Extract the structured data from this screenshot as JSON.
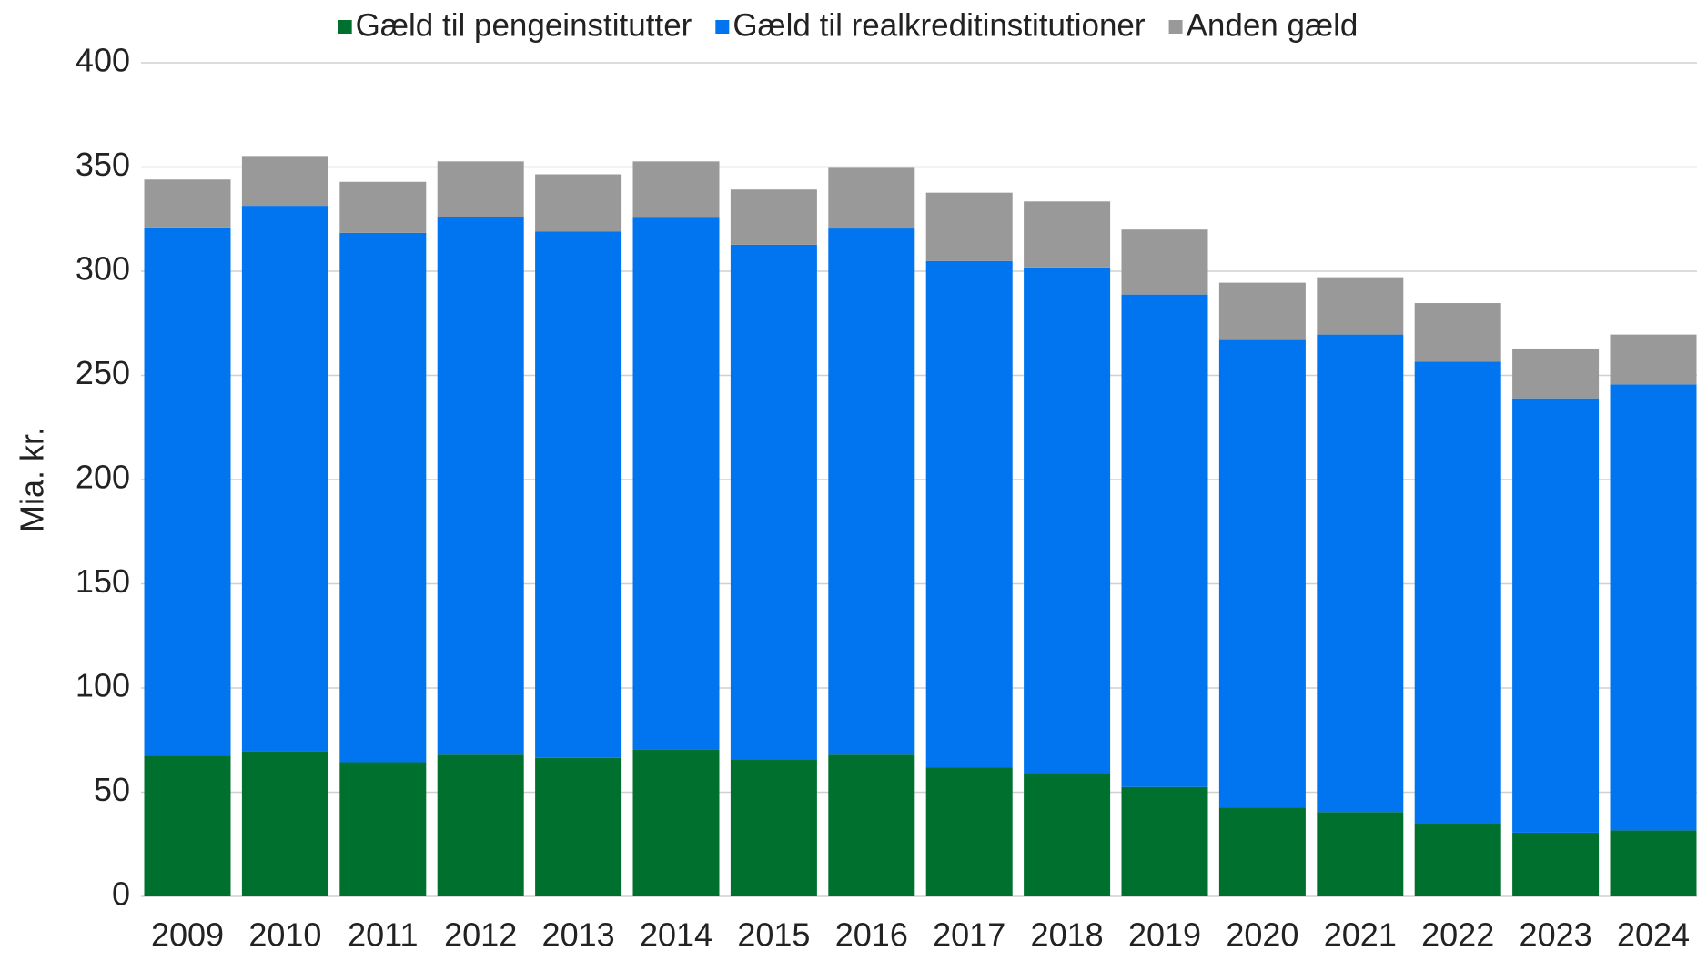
{
  "chart_data": {
    "type": "stacked_bar",
    "ylabel": "Mia. kr.",
    "categories": [
      "2009",
      "2010",
      "2011",
      "2012",
      "2013",
      "2014",
      "2015",
      "2016",
      "2017",
      "2018",
      "2019",
      "2020",
      "2021",
      "2022",
      "2023",
      "2024"
    ],
    "series": [
      {
        "name": "Gæld til pengeinstitutter",
        "color": "#00702e",
        "values": [
          67.5,
          69.6,
          64.4,
          68,
          66.5,
          70.6,
          65.5,
          68,
          61.8,
          59.2,
          52.5,
          42.6,
          40.5,
          34.8,
          30.6,
          31.7
        ]
      },
      {
        "name": "Gæld til realkreditinstitutioner",
        "color": "#0075ef",
        "values": [
          253.5,
          261.8,
          254,
          258.2,
          252.5,
          255.1,
          247.2,
          252.5,
          243.1,
          242.6,
          236.3,
          224.4,
          229.1,
          221.8,
          208.4,
          214
        ]
      },
      {
        "name": "Anden gæld",
        "color": "#999999",
        "values": [
          23,
          23.9,
          24.5,
          26.5,
          27.5,
          27,
          26.5,
          29.1,
          32.8,
          31.7,
          31.2,
          27.5,
          27.5,
          28.1,
          23.9,
          23.9
        ]
      }
    ],
    "ylim": [
      0,
      400
    ],
    "yticks": [
      0,
      50,
      100,
      150,
      200,
      250,
      300,
      350,
      400
    ],
    "grid": true,
    "legend": "top"
  }
}
